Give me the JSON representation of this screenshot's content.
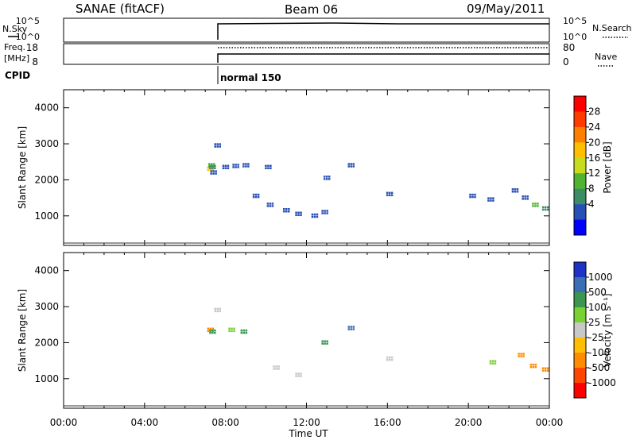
{
  "header": {
    "station": "SANAE (fitACF)",
    "beam": "Beam 06",
    "date": "09/May/2011"
  },
  "status_panels": {
    "nsky_label": "N.Sky",
    "nsearch_label": "N.Search",
    "noise_ticks": [
      "10^5",
      "10^0"
    ],
    "freq_label": "Freq.",
    "freq_unit": "[MHz]",
    "freq_ticks": [
      "18",
      "8"
    ],
    "nave_ticks": [
      "80",
      "0"
    ],
    "nave_label": "Nave",
    "cpid_label": "CPID",
    "cpid_value": "normal 150"
  },
  "colorbars": {
    "power": {
      "label": "Power [dB]",
      "ticks": [
        "28",
        "24",
        "20",
        "16",
        "12",
        "8",
        "4"
      ],
      "colors": [
        "#ff0000",
        "#ff3c00",
        "#ff8000",
        "#ffbf00",
        "#c8dc1e",
        "#50b432",
        "#3c8c64",
        "#2850b4",
        "#0000ff"
      ]
    },
    "velocity": {
      "label": "Velocity [m s⁻¹]",
      "ticks": [
        "1000",
        "500",
        "100",
        "25",
        "-25",
        "-100",
        "-500",
        "-1000"
      ],
      "colors": [
        "#1e32c8",
        "#3c6eb4",
        "#3c9650",
        "#78d232",
        "#c8c8c8",
        "#ffbe00",
        "#ff8c00",
        "#ff4600",
        "#ff0000"
      ]
    }
  },
  "chart_data": [
    {
      "type": "scatter",
      "title": "",
      "xlabel": "Time UT",
      "ylabel": "Slant Range [km]",
      "x_ticks": [
        "00:00",
        "04:00",
        "08:00",
        "12:00",
        "16:00",
        "20:00",
        "00:00"
      ],
      "y_ticks": [
        "1000",
        "2000",
        "3000",
        "4000"
      ],
      "xlim": [
        0,
        24
      ],
      "ylim": [
        180,
        4500
      ],
      "colorbar": "Power [dB]",
      "points": [
        {
          "t": 7.25,
          "r": 2300,
          "v": 18
        },
        {
          "t": 7.3,
          "r": 2400,
          "v": 12
        },
        {
          "t": 7.35,
          "r": 2350,
          "v": 8
        },
        {
          "t": 7.4,
          "r": 2200,
          "v": 6
        },
        {
          "t": 7.6,
          "r": 2950,
          "v": 5
        },
        {
          "t": 8.0,
          "r": 2350,
          "v": 6
        },
        {
          "t": 8.5,
          "r": 2380,
          "v": 5
        },
        {
          "t": 9.0,
          "r": 2400,
          "v": 6
        },
        {
          "t": 10.1,
          "r": 2350,
          "v": 5
        },
        {
          "t": 9.5,
          "r": 1550,
          "v": 4
        },
        {
          "t": 10.2,
          "r": 1300,
          "v": 5
        },
        {
          "t": 11.0,
          "r": 1150,
          "v": 6
        },
        {
          "t": 11.6,
          "r": 1050,
          "v": 5
        },
        {
          "t": 12.4,
          "r": 1000,
          "v": 6
        },
        {
          "t": 12.9,
          "r": 1100,
          "v": 5
        },
        {
          "t": 13.0,
          "r": 2050,
          "v": 7
        },
        {
          "t": 14.2,
          "r": 2400,
          "v": 5
        },
        {
          "t": 16.1,
          "r": 1600,
          "v": 5
        },
        {
          "t": 20.2,
          "r": 1550,
          "v": 4
        },
        {
          "t": 21.1,
          "r": 1450,
          "v": 6
        },
        {
          "t": 22.3,
          "r": 1700,
          "v": 5
        },
        {
          "t": 22.8,
          "r": 1500,
          "v": 7
        },
        {
          "t": 23.3,
          "r": 1300,
          "v": 12
        },
        {
          "t": 23.8,
          "r": 1200,
          "v": 10
        }
      ]
    },
    {
      "type": "scatter",
      "title": "",
      "xlabel": "Time UT",
      "ylabel": "Slant Range [km]",
      "x_ticks": [
        "00:00",
        "04:00",
        "08:00",
        "12:00",
        "16:00",
        "20:00",
        "00:00"
      ],
      "y_ticks": [
        "1000",
        "2000",
        "3000",
        "4000"
      ],
      "xlim": [
        0,
        24
      ],
      "ylim": [
        180,
        4500
      ],
      "colorbar": "Velocity [m s⁻¹]",
      "points": [
        {
          "t": 7.25,
          "r": 2350,
          "v": -200
        },
        {
          "t": 7.35,
          "r": 2300,
          "v": 150
        },
        {
          "t": 7.6,
          "r": 2900,
          "v": 0
        },
        {
          "t": 8.3,
          "r": 2350,
          "v": 60
        },
        {
          "t": 8.9,
          "r": 2300,
          "v": 200
        },
        {
          "t": 10.5,
          "r": 1300,
          "v": 0
        },
        {
          "t": 11.6,
          "r": 1100,
          "v": 0
        },
        {
          "t": 12.9,
          "r": 2000,
          "v": 200
        },
        {
          "t": 14.2,
          "r": 2400,
          "v": 600
        },
        {
          "t": 16.1,
          "r": 1550,
          "v": 0
        },
        {
          "t": 21.2,
          "r": 1450,
          "v": 80
        },
        {
          "t": 22.6,
          "r": 1650,
          "v": -400
        },
        {
          "t": 23.2,
          "r": 1350,
          "v": -500
        },
        {
          "t": 23.8,
          "r": 1250,
          "v": -450
        }
      ]
    }
  ]
}
